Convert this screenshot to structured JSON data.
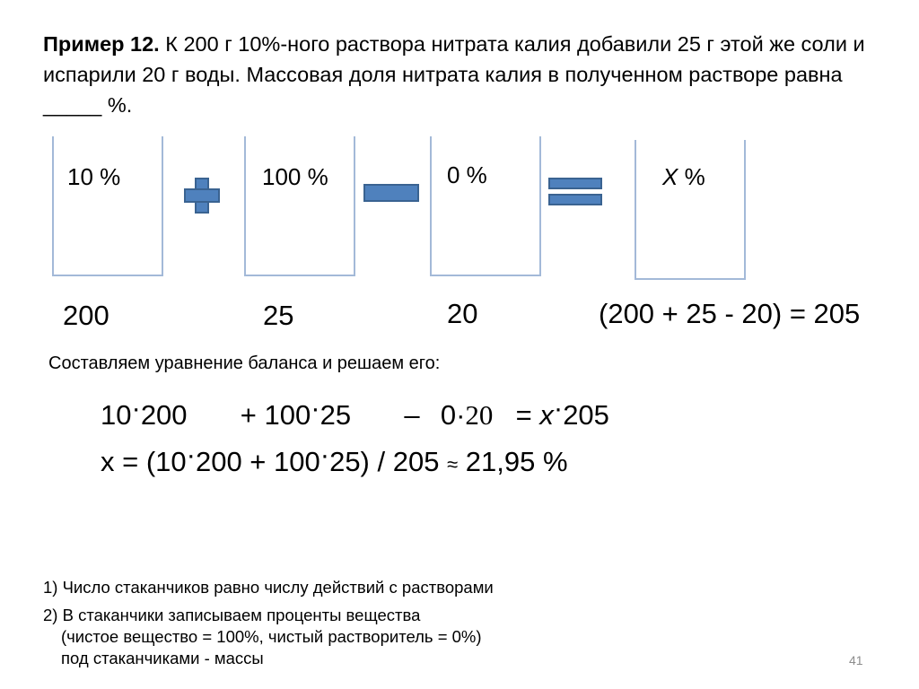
{
  "problem": {
    "label": "Пример 12.",
    "text": " К 200 г 10%-ного раствора нитрата калия добавили 25 г этой же соли и испарили 20 г воды. Массовая доля нитрата калия в полученном растворе   равна _____ %."
  },
  "beakers": [
    {
      "percent": "10 %",
      "mass": "200"
    },
    {
      "percent": "100 %",
      "mass": "25"
    },
    {
      "percent": "0 %",
      "mass": "20"
    },
    {
      "percent_var": "X",
      "percent_unit": " %",
      "mass": "(200 + 25 - 20) = 205"
    }
  ],
  "operators": [
    "plus-icon",
    "minus-icon",
    "equals-icon"
  ],
  "balance_caption": "Составляем уравнение баланса и решаем его:",
  "equation": {
    "t1a": "10",
    "t1b": "200",
    "t2a": "+ 100",
    "t2b": "25",
    "t3sign": "–",
    "t3a": "0",
    "t3b": "20",
    "t4pre": "= ",
    "t4var": "x",
    "t4b": "205"
  },
  "solution": {
    "part1": "x = (10",
    "part2": "200 + 100",
    "part3": "25) / 205",
    "approx": "≈",
    "result": "21,95 %"
  },
  "notes": [
    "1) Число стаканчиков равно числу действий с растворами",
    "2) В стаканчики записываем проценты  вещества",
    "(чистое вещество = 100%, чистый растворитель = 0%)",
    "под стаканчиками - массы"
  ],
  "page_number": "41",
  "colors": {
    "beaker_outline": "#a3b9d8",
    "operator_fill": "#4f81bd"
  }
}
